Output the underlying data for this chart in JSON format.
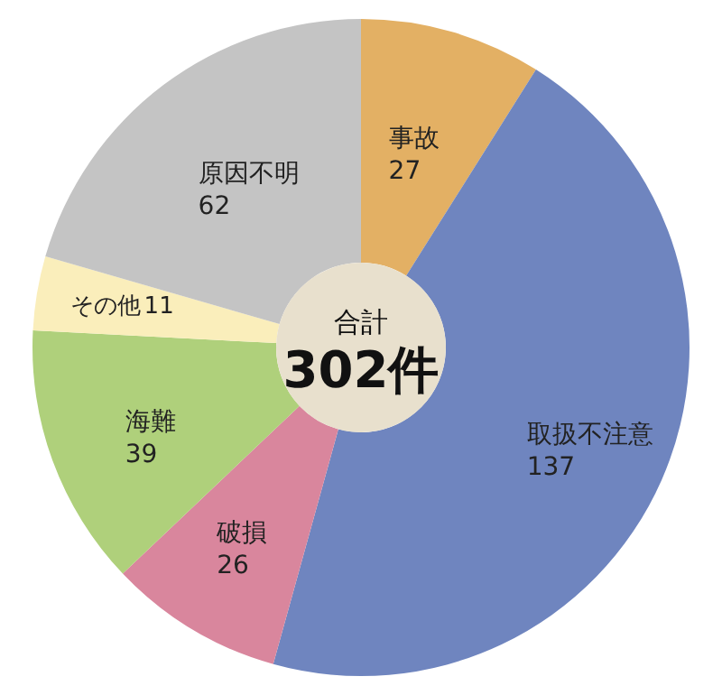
{
  "chart_data": {
    "type": "donut",
    "categories": [
      "事故",
      "取扱不注意",
      "破損",
      "海難",
      "その他",
      "原因不明"
    ],
    "values": [
      27,
      137,
      26,
      39,
      11,
      62
    ],
    "colors": [
      "#e3b064",
      "#6f85bf",
      "#d9869d",
      "#afd07b",
      "#faeebb",
      "#c4c4c4"
    ],
    "data_labels": true,
    "annotations": [
      "合計",
      "302件"
    ]
  }
}
